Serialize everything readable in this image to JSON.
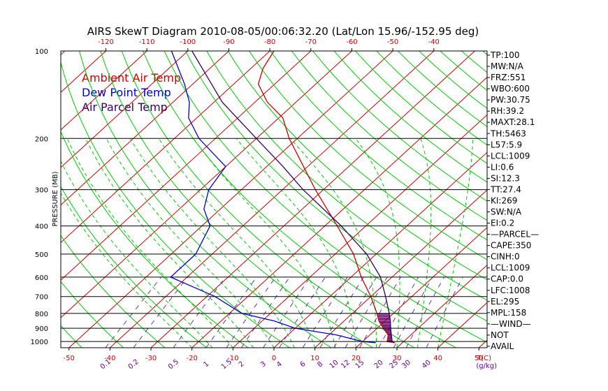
{
  "title": "AIRS SkewT Diagram 2010-08-05/00:06:32.20 (Lat/Lon 15.96/-152.95 deg)",
  "colors": {
    "ambient": "#cc0000",
    "dewpoint": "#0000cc",
    "parcel": "#330066",
    "isotherm": "#cc0000",
    "dry_adiabat": "#00cc00",
    "mixing_ratio": "#6633aa",
    "frame": "#000000",
    "hatch": "#660066"
  },
  "legend": [
    {
      "label": "Ambient Air Temp",
      "color": "#cc0000"
    },
    {
      "label": "Dew Point Temp",
      "color": "#0000cc"
    },
    {
      "label": "Air Parcel Temp",
      "color": "#330066"
    }
  ],
  "indices": [
    "TP:100",
    "MW:N/A",
    "FRZ:551",
    "WBO:600",
    "PW:30.75",
    "RH:39.2",
    "MAXT:28.1",
    "TH:5463",
    "L57:5.9",
    "LCL:1009",
    "LI:0.6",
    "SI:12.3",
    "TT:27.4",
    "KI:269",
    "SW:N/A",
    "EI:0.2",
    "—PARCEL—",
    "CAPE:350",
    "CINH:0",
    "LCL:1009",
    "CAP:0.0",
    "LFC:1008",
    "EL:295",
    "MPL:158",
    "—WIND—",
    "NOT",
    "AVAIL"
  ],
  "chart_data": {
    "type": "line",
    "skew_t": true,
    "ylabel": "PRESSURE (MB)",
    "y_scale": "log",
    "ylim": [
      1050,
      100
    ],
    "xlim_bottom": [
      -52,
      52
    ],
    "xlim_top": [
      -131,
      -36
    ],
    "pressure_levels": [
      100,
      200,
      300,
      400,
      500,
      600,
      700,
      800,
      900,
      1000
    ],
    "pressure_labels": [
      "100",
      "200",
      "300",
      "400",
      "500",
      "600",
      "700",
      "800",
      "900",
      "1000"
    ],
    "bottom_ticks": [
      -50,
      -40,
      -30,
      -20,
      -10,
      0,
      10,
      20,
      30,
      40,
      50
    ],
    "bottom_tick_labels": [
      "-50",
      "-40",
      "-30",
      "-20",
      "-10",
      "0",
      "10",
      "20",
      "30",
      "40",
      "50"
    ],
    "bottom_axis_label": "T(C)",
    "top_ticks": [
      -120,
      -110,
      -100,
      -90,
      -80,
      -70,
      -60,
      -50,
      -40
    ],
    "top_tick_labels": [
      "-120",
      "-110",
      "-100",
      "-90",
      "-80",
      "-70",
      "-60",
      "-50",
      "-40"
    ],
    "mixing_ratios": [
      0.1,
      0.2,
      0.5,
      1,
      1.5,
      2,
      3,
      4,
      6,
      8,
      10,
      12,
      15,
      20,
      25,
      30,
      40
    ],
    "mixing_ratio_labels": [
      "0.1",
      "0.2",
      "0.5",
      "1",
      "1.5",
      "2",
      "3",
      "4",
      "6",
      "8",
      "10",
      "12",
      "15",
      "20",
      "25",
      "30",
      "40"
    ],
    "mixing_ratio_unit": "(g/kg)",
    "series": [
      {
        "name": "Ambient Air Temp",
        "pressure": [
          1009,
          1000,
          950,
          900,
          850,
          800,
          700,
          600,
          500,
          400,
          300,
          250,
          200,
          170,
          150,
          130,
          115,
          100
        ],
        "temp": [
          28.1,
          26,
          24.5,
          21.5,
          18.5,
          16,
          10,
          2.5,
          -5.5,
          -17,
          -32,
          -41,
          -52,
          -59,
          -67,
          -74,
          -77,
          -79
        ]
      },
      {
        "name": "Dew Point Temp",
        "pressure": [
          1009,
          1000,
          950,
          900,
          850,
          800,
          700,
          600,
          550,
          500,
          400,
          350,
          300,
          250,
          200,
          170,
          150,
          130,
          100
        ],
        "temp": [
          23.5,
          20,
          12,
          0,
          -7,
          -17,
          -28,
          -44,
          -44,
          -44,
          -48,
          -54,
          -58,
          -60,
          -74,
          -82,
          -86,
          -92,
          -104
        ]
      },
      {
        "name": "Air Parcel Temp",
        "pressure": [
          1009,
          1000,
          950,
          900,
          850,
          800,
          700,
          600,
          500,
          400,
          300,
          250,
          200,
          150,
          100
        ],
        "temp": [
          28.1,
          27.2,
          25.3,
          23.3,
          21.3,
          19,
          13.6,
          7.2,
          -2.3,
          -16,
          -35,
          -46,
          -60,
          -78,
          -99
        ]
      }
    ],
    "cape_region": {
      "pressure_range": [
        1008,
        800
      ]
    }
  }
}
